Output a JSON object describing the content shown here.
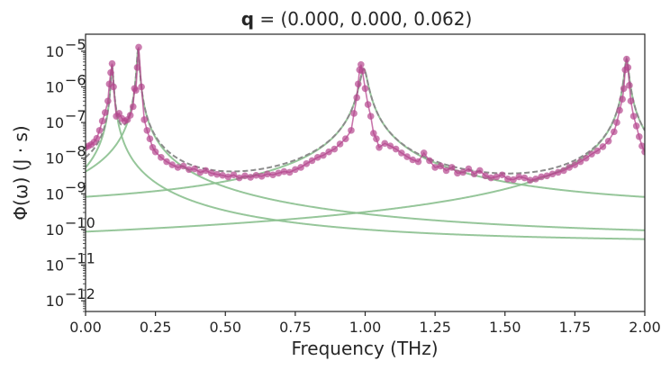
{
  "chart_data": {
    "type": "line",
    "title": {
      "bold": "q",
      "rest": " = (0.000, 0.000, 0.062)"
    },
    "xlabel": "Frequency (THz)",
    "ylabel": "Φ(ω) (J · s)",
    "xlim": [
      0.0,
      2.0
    ],
    "ylim": [
      5e-13,
      3e-05
    ],
    "yscale": "log",
    "xticks": [
      "0.00",
      "0.25",
      "0.50",
      "0.75",
      "1.00",
      "1.25",
      "1.50",
      "1.75",
      "2.00"
    ],
    "yticks": [
      {
        "mant": "10",
        "exp": "−12"
      },
      {
        "mant": "10",
        "exp": "−11"
      },
      {
        "mant": "10",
        "exp": "−10"
      },
      {
        "mant": "10",
        "exp": "−9"
      },
      {
        "mant": "10",
        "exp": "−8"
      },
      {
        "mant": "10",
        "exp": "−7"
      },
      {
        "mant": "10",
        "exp": "−6"
      },
      {
        "mant": "10",
        "exp": "−5"
      }
    ],
    "grid": false,
    "colors": {
      "data": "#b5478f",
      "fit": "#8bc08f",
      "total": "#8c8c8c",
      "axis": "#262626"
    },
    "lorentzian_components": [
      {
        "center": 0.095,
        "peak": 4e-06,
        "width": 0.0035,
        "far_level": 4e-11
      },
      {
        "center": 0.188,
        "peak": 1.2e-05,
        "width": 0.0035,
        "far_level": 5e-11
      },
      {
        "center": 0.995,
        "peak": 3.2e-06,
        "width": 0.012,
        "far_level": 3.6e-10
      },
      {
        "center": 1.935,
        "peak": 6e-06,
        "width": 0.0065,
        "far_level": 1.9e-11
      }
    ],
    "scatter_x": [
      0.0,
      0.01,
      0.02,
      0.03,
      0.04,
      0.05,
      0.06,
      0.07,
      0.08,
      0.085,
      0.09,
      0.095,
      0.1,
      0.11,
      0.12,
      0.13,
      0.14,
      0.15,
      0.16,
      0.17,
      0.175,
      0.18,
      0.185,
      0.19,
      0.2,
      0.21,
      0.22,
      0.23,
      0.24,
      0.25,
      0.27,
      0.29,
      0.31,
      0.33,
      0.35,
      0.37,
      0.39,
      0.41,
      0.43,
      0.45,
      0.47,
      0.49,
      0.51,
      0.53,
      0.55,
      0.57,
      0.59,
      0.61,
      0.63,
      0.65,
      0.67,
      0.69,
      0.71,
      0.73,
      0.75,
      0.77,
      0.79,
      0.81,
      0.83,
      0.85,
      0.87,
      0.89,
      0.91,
      0.93,
      0.95,
      0.96,
      0.97,
      0.975,
      0.98,
      0.985,
      0.99,
      1.0,
      1.01,
      1.02,
      1.03,
      1.04,
      1.05,
      1.07,
      1.09,
      1.11,
      1.13,
      1.15,
      1.17,
      1.19,
      1.21,
      1.23,
      1.25,
      1.27,
      1.29,
      1.31,
      1.33,
      1.35,
      1.37,
      1.39,
      1.41,
      1.43,
      1.45,
      1.47,
      1.49,
      1.51,
      1.53,
      1.55,
      1.57,
      1.59,
      1.61,
      1.63,
      1.65,
      1.67,
      1.69,
      1.71,
      1.73,
      1.75,
      1.77,
      1.79,
      1.81,
      1.83,
      1.85,
      1.87,
      1.89,
      1.9,
      1.91,
      1.92,
      1.925,
      1.93,
      1.935,
      1.94,
      1.945,
      1.95,
      1.96,
      1.97,
      1.98,
      1.99,
      2.0
    ],
    "scatter_y": [
      2e-08,
      2.2e-08,
      2.4e-08,
      2.8e-08,
      3.6e-08,
      6e-08,
      1.1e-07,
      1.9e-07,
      4e-07,
      1.2e-06,
      2.5e-06,
      4.5e-06,
      1e-06,
      1.5e-07,
      1.8e-07,
      1.3e-07,
      1.1e-07,
      1.2e-07,
      1.6e-07,
      2.8e-07,
      9e-07,
      8e-07,
      3.5e-06,
      1.3e-05,
      1e-06,
      1.2e-07,
      6e-08,
      3.5e-08,
      2e-08,
      1.5e-08,
      1.05e-08,
      8e-09,
      6.5e-09,
      5.5e-09,
      6e-09,
      4.8e-09,
      5e-09,
      4e-09,
      4.5e-09,
      3.8e-09,
      3.5e-09,
      3.3e-09,
      3e-09,
      3.4e-09,
      2.8e-09,
      3.2e-09,
      2.9e-09,
      3.3e-09,
      3.1e-09,
      3.6e-09,
      3.4e-09,
      3.8e-09,
      4.2e-09,
      4e-09,
      4.8e-09,
      5.5e-09,
      7e-09,
      8.5e-09,
      1.05e-08,
      1.2e-08,
      1.5e-08,
      1.8e-08,
      2.5e-08,
      3.5e-08,
      6e-08,
      1.8e-07,
      5e-07,
      1.2e-06,
      3e-06,
      4.2e-06,
      2.8e-06,
      9e-07,
      3.2e-07,
      1.5e-07,
      5e-08,
      3.5e-08,
      2e-08,
      2.6e-08,
      2.2e-08,
      1.8e-08,
      1.4e-08,
      1.1e-08,
      9e-09,
      8e-09,
      1.4e-08,
      8.5e-09,
      5.5e-09,
      6e-09,
      4.5e-09,
      5.5e-09,
      3.8e-09,
      4e-09,
      5e-09,
      3.6e-09,
      4.5e-09,
      3.2e-09,
      2.8e-09,
      3e-09,
      3.4e-09,
      2.6e-09,
      2.5e-09,
      3e-09,
      2.8e-09,
      2.4e-09,
      2.6e-09,
      3e-09,
      3.2e-09,
      3.6e-09,
      4e-09,
      4.5e-09,
      5.5e-09,
      6.5e-09,
      8e-09,
      1e-08,
      1.3e-08,
      1.6e-08,
      2.1e-08,
      3e-08,
      5.5e-08,
      1e-07,
      2.2e-07,
      4.5e-07,
      9e-07,
      3e-06,
      6e-06,
      3.5e-06,
      1.1e-06,
      4e-07,
      1.5e-07,
      8e-08,
      4e-08,
      2.2e-08,
      1.5e-08
    ]
  }
}
